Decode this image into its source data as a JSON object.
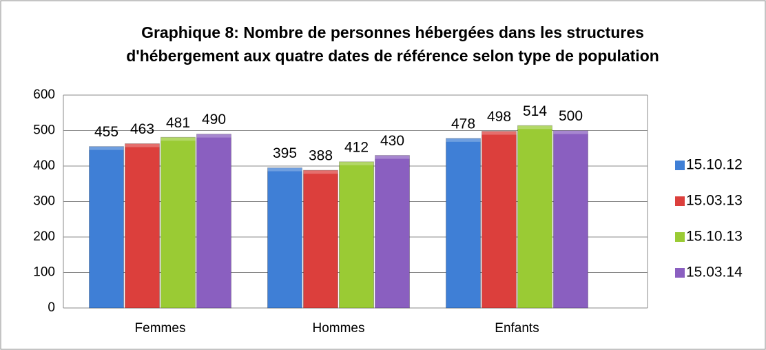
{
  "chart_data": {
    "type": "bar",
    "title": "Graphique 8: Nombre de personnes hébergées dans les structures d'hébergement aux quatre dates de référence selon type de population",
    "categories": [
      "Femmes",
      "Hommes",
      "Enfants"
    ],
    "series": [
      {
        "name": "15.10.12",
        "color": "#3f7fd6",
        "values": [
          455,
          395,
          478
        ]
      },
      {
        "name": "15.03.13",
        "color": "#dc3f3c",
        "values": [
          463,
          388,
          498
        ]
      },
      {
        "name": "15.10.13",
        "color": "#9acb34",
        "values": [
          481,
          412,
          514
        ]
      },
      {
        "name": "15.03.14",
        "color": "#8a5fc0",
        "values": [
          490,
          430,
          500
        ]
      }
    ],
    "ylim": [
      0,
      600
    ],
    "yticks": [
      0,
      100,
      200,
      300,
      400,
      500,
      600
    ],
    "grid": true,
    "legend": "right"
  }
}
